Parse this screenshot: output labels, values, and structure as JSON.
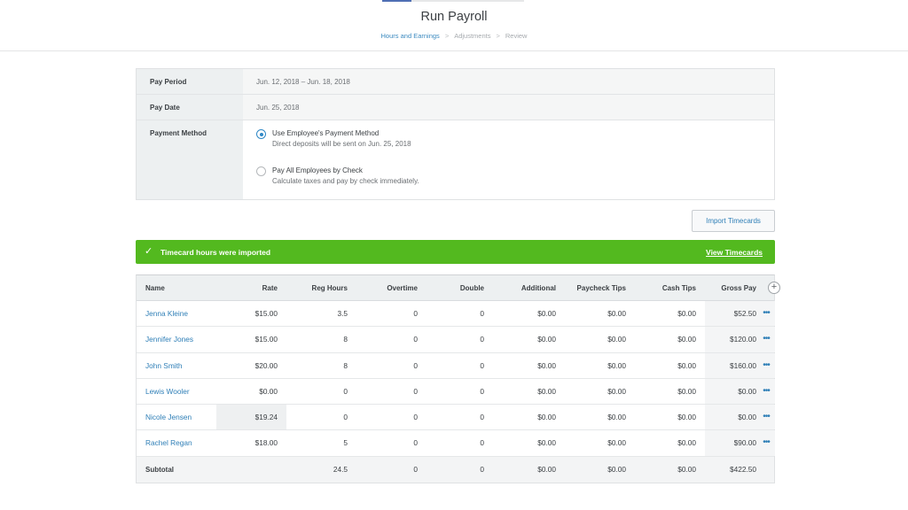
{
  "header": {
    "title": "Run Payroll",
    "steps": [
      "Hours and Earnings",
      "Adjustments",
      "Review"
    ],
    "step_separator": ">",
    "active_step": 0
  },
  "pay_info": {
    "pay_period_label": "Pay Period",
    "pay_period_value": "Jun. 12, 2018 – Jun. 18, 2018",
    "pay_date_label": "Pay Date",
    "pay_date_value": "Jun. 25, 2018",
    "payment_method_label": "Payment Method",
    "options": [
      {
        "title": "Use Employee's Payment Method",
        "desc": "Direct deposits will be sent on Jun. 25, 2018",
        "selected": true
      },
      {
        "title": "Pay All Employees by Check",
        "desc": "Calculate taxes and pay by check immediately.",
        "selected": false
      }
    ]
  },
  "import_button": "Import Timecards",
  "banner": {
    "icon": "check-icon",
    "text": "Timecard hours were imported",
    "link": "View Timecards",
    "color": "#53b91f"
  },
  "table": {
    "headers": [
      "Name",
      "Rate",
      "Reg Hours",
      "Overtime",
      "Double",
      "Additional",
      "Paycheck Tips",
      "Cash Tips",
      "Gross Pay"
    ],
    "rows": [
      {
        "name": "Jenna Kleine",
        "rate": "$15.00",
        "reg": "3.5",
        "ot": "0",
        "dbl": "0",
        "add": "$0.00",
        "tips": "$0.00",
        "cash": "$0.00",
        "gross": "$52.50"
      },
      {
        "name": "Jennifer Jones",
        "rate": "$15.00",
        "reg": "8",
        "ot": "0",
        "dbl": "0",
        "add": "$0.00",
        "tips": "$0.00",
        "cash": "$0.00",
        "gross": "$120.00"
      },
      {
        "name": "John Smith",
        "rate": "$20.00",
        "reg": "8",
        "ot": "0",
        "dbl": "0",
        "add": "$0.00",
        "tips": "$0.00",
        "cash": "$0.00",
        "gross": "$160.00"
      },
      {
        "name": "Lewis Wooler",
        "rate": "$0.00",
        "reg": "0",
        "ot": "0",
        "dbl": "0",
        "add": "$0.00",
        "tips": "$0.00",
        "cash": "$0.00",
        "gross": "$0.00"
      },
      {
        "name": "Nicole Jensen",
        "rate": "$19.24",
        "reg": "0",
        "ot": "0",
        "dbl": "0",
        "add": "$0.00",
        "tips": "$0.00",
        "cash": "$0.00",
        "gross": "$0.00"
      },
      {
        "name": "Rachel Regan",
        "rate": "$18.00",
        "reg": "5",
        "ot": "0",
        "dbl": "0",
        "add": "$0.00",
        "tips": "$0.00",
        "cash": "$0.00",
        "gross": "$90.00"
      }
    ],
    "subtotal": {
      "name": "Subtotal",
      "rate": "",
      "reg": "24.5",
      "ot": "0",
      "dbl": "0",
      "add": "$0.00",
      "tips": "$0.00",
      "cash": "$0.00",
      "gross": "$422.50"
    },
    "more_icon": "•••",
    "add_column_icon": "+"
  }
}
